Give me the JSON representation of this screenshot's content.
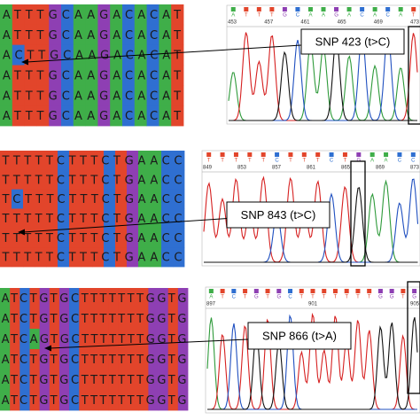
{
  "panels": [
    {
      "rows": [
        "ATTTGCAAGACACAT",
        "ATTTGCAAGACACAT",
        "ACTTGCAAGACACAT",
        "ATTTGCAAGACACAT",
        "ATTTGCAAGACACAT",
        "ATTTGCAAGACACAT"
      ],
      "snp_label": "SNP 423 (t>C)",
      "positions": [
        "453",
        "457",
        "461",
        "465",
        "469",
        "473"
      ]
    },
    {
      "rows": [
        "TTTTTCTTTCTGAACC",
        "TTTTTCTTTCTGAACC",
        "TCTTTCTTTCTGAACC",
        "TTTTTCTTTCTGAACC",
        "TTTTTCTTTCTGAACC",
        "TTTTTCTTTCTGAACC"
      ],
      "snp_label": "SNP 843 (t>C)",
      "positions": [
        "849",
        "853",
        "857",
        "861",
        "865",
        "869",
        "873"
      ]
    },
    {
      "rows": [
        "ATCTGTGCTTTTTTTGGTG",
        "ATCTGTGCTTTTTTTGGTG",
        "ATCAGTGCTTTTTTTGGTG",
        "ATCTGTGCTTTTTTTGGTG",
        "ATCTGTGCTTTTTTTGGTG",
        "ATCTGTGCTTTTTTTGGTG"
      ],
      "snp_label": "SNP 866 (t>A)",
      "positions": [
        "897",
        "901",
        "905"
      ]
    }
  ]
}
